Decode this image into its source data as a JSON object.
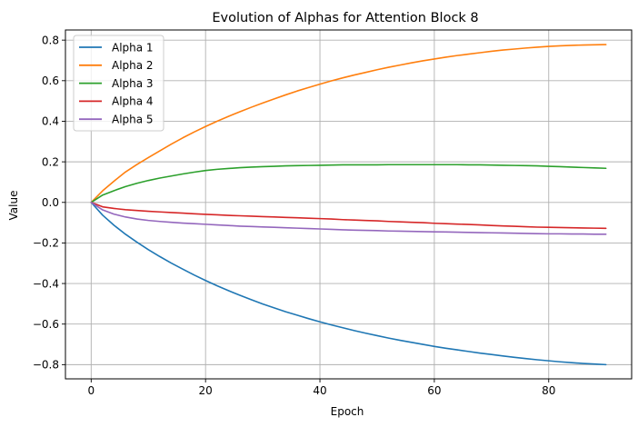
{
  "chart_data": {
    "type": "line",
    "title": "Evolution of Alphas for Attention Block 8",
    "xlabel": "Epoch",
    "ylabel": "Value",
    "xlim": [
      -4.5,
      94.5
    ],
    "ylim": [
      -0.87,
      0.85
    ],
    "xticks": [
      0,
      20,
      40,
      60,
      80
    ],
    "yticks": [
      -0.8,
      -0.6,
      -0.4,
      -0.2,
      0.0,
      0.2,
      0.4,
      0.6,
      0.8
    ],
    "xtick_labels": [
      "0",
      "20",
      "40",
      "60",
      "80"
    ],
    "ytick_labels": [
      "−0.8",
      "−0.6",
      "−0.4",
      "−0.2",
      "0.0",
      "0.2",
      "0.4",
      "0.6",
      "0.8"
    ],
    "grid": true,
    "legend_position": "top-left",
    "x": [
      0,
      2,
      4,
      6,
      8,
      10,
      12,
      14,
      16,
      18,
      20,
      22,
      24,
      26,
      28,
      30,
      32,
      34,
      36,
      38,
      40,
      42,
      44,
      46,
      48,
      50,
      52,
      54,
      56,
      58,
      60,
      62,
      64,
      66,
      68,
      70,
      72,
      74,
      76,
      78,
      80,
      82,
      84,
      86,
      88,
      90
    ],
    "series": [
      {
        "name": "Alpha 1",
        "color": "#1f77b4",
        "values": [
          0.0,
          -0.063,
          -0.113,
          -0.157,
          -0.196,
          -0.233,
          -0.267,
          -0.299,
          -0.329,
          -0.358,
          -0.385,
          -0.411,
          -0.435,
          -0.458,
          -0.48,
          -0.501,
          -0.52,
          -0.539,
          -0.556,
          -0.573,
          -0.589,
          -0.604,
          -0.618,
          -0.632,
          -0.645,
          -0.657,
          -0.669,
          -0.68,
          -0.69,
          -0.7,
          -0.71,
          -0.719,
          -0.727,
          -0.735,
          -0.743,
          -0.75,
          -0.757,
          -0.764,
          -0.77,
          -0.776,
          -0.781,
          -0.786,
          -0.79,
          -0.794,
          -0.797,
          -0.8
        ]
      },
      {
        "name": "Alpha 2",
        "color": "#ff7f0e",
        "values": [
          0.0,
          0.057,
          0.105,
          0.15,
          0.187,
          0.221,
          0.254,
          0.287,
          0.318,
          0.347,
          0.374,
          0.4,
          0.424,
          0.447,
          0.469,
          0.49,
          0.51,
          0.53,
          0.549,
          0.566,
          0.583,
          0.599,
          0.614,
          0.628,
          0.641,
          0.654,
          0.666,
          0.677,
          0.688,
          0.698,
          0.707,
          0.716,
          0.724,
          0.731,
          0.738,
          0.745,
          0.751,
          0.756,
          0.761,
          0.765,
          0.769,
          0.772,
          0.774,
          0.776,
          0.777,
          0.778
        ]
      },
      {
        "name": "Alpha 3",
        "color": "#2ca02c",
        "values": [
          0.0,
          0.036,
          0.058,
          0.078,
          0.094,
          0.108,
          0.12,
          0.13,
          0.14,
          0.149,
          0.157,
          0.163,
          0.167,
          0.171,
          0.174,
          0.176,
          0.178,
          0.18,
          0.181,
          0.182,
          0.183,
          0.184,
          0.185,
          0.185,
          0.185,
          0.185,
          0.186,
          0.186,
          0.186,
          0.186,
          0.186,
          0.186,
          0.186,
          0.185,
          0.185,
          0.184,
          0.183,
          0.182,
          0.181,
          0.18,
          0.178,
          0.176,
          0.174,
          0.172,
          0.17,
          0.168
        ]
      },
      {
        "name": "Alpha 4",
        "color": "#d62728",
        "values": [
          0.0,
          -0.022,
          -0.03,
          -0.036,
          -0.04,
          -0.044,
          -0.047,
          -0.05,
          -0.053,
          -0.056,
          -0.059,
          -0.061,
          -0.064,
          -0.066,
          -0.068,
          -0.07,
          -0.072,
          -0.074,
          -0.076,
          -0.078,
          -0.08,
          -0.082,
          -0.085,
          -0.087,
          -0.089,
          -0.091,
          -0.094,
          -0.096,
          -0.098,
          -0.1,
          -0.103,
          -0.105,
          -0.107,
          -0.109,
          -0.111,
          -0.114,
          -0.116,
          -0.118,
          -0.12,
          -0.122,
          -0.123,
          -0.124,
          -0.125,
          -0.126,
          -0.127,
          -0.128
        ]
      },
      {
        "name": "Alpha 5",
        "color": "#9467bd",
        "values": [
          0.0,
          -0.037,
          -0.058,
          -0.072,
          -0.082,
          -0.089,
          -0.094,
          -0.098,
          -0.102,
          -0.105,
          -0.108,
          -0.111,
          -0.114,
          -0.117,
          -0.119,
          -0.121,
          -0.123,
          -0.125,
          -0.127,
          -0.129,
          -0.131,
          -0.133,
          -0.135,
          -0.137,
          -0.138,
          -0.139,
          -0.141,
          -0.142,
          -0.143,
          -0.144,
          -0.145,
          -0.146,
          -0.147,
          -0.148,
          -0.149,
          -0.15,
          -0.151,
          -0.152,
          -0.153,
          -0.154,
          -0.155,
          -0.155,
          -0.156,
          -0.156,
          -0.157,
          -0.157
        ]
      }
    ]
  }
}
